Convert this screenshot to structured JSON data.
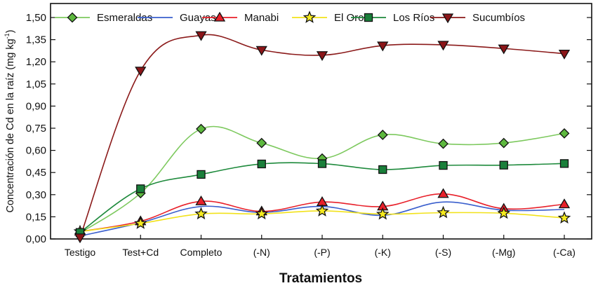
{
  "chart_data": {
    "type": "line",
    "title": "",
    "xlabel": "Tratamientos",
    "ylabel": "Concentración de Cd en la raíz (mg kg",
    "ylabel_superscript": "-1",
    "ylabel_suffix": ")",
    "ylim": [
      0,
      1.5
    ],
    "yticks": [
      "0,00",
      "0,15",
      "0,30",
      "0,45",
      "0,60",
      "0,75",
      "0,90",
      "1,05",
      "1,20",
      "1,35",
      "1,50"
    ],
    "ytick_values": [
      0,
      0.15,
      0.3,
      0.45,
      0.6,
      0.75,
      0.9,
      1.05,
      1.2,
      1.35,
      1.5
    ],
    "categories": [
      "Testigo",
      "Test+Cd",
      "Completo",
      "(-N)",
      "(-P)",
      "(-K)",
      "(-S)",
      "(-Mg)",
      "(-Ca)"
    ],
    "grid": false,
    "legend_position": "top",
    "series": [
      {
        "name": "Esmeraldas",
        "color": "#7dc95e",
        "marker": "diamond",
        "marker_fill": "#5db83e",
        "values": [
          0.04,
          0.31,
          0.745,
          0.65,
          0.545,
          0.705,
          0.645,
          0.65,
          0.715
        ]
      },
      {
        "name": "Guayas",
        "color": "#3a5fcd",
        "marker": "none",
        "marker_fill": "#3a5fcd",
        "values": [
          0.02,
          0.11,
          0.22,
          0.18,
          0.22,
          0.16,
          0.25,
          0.195,
          0.2
        ]
      },
      {
        "name": "Manabi",
        "color": "#e8202a",
        "marker": "triangle-up",
        "marker_fill": "#e8202a",
        "values": [
          0.05,
          0.12,
          0.255,
          0.187,
          0.25,
          0.22,
          0.305,
          0.205,
          0.235
        ]
      },
      {
        "name": "El Oro",
        "color": "#f2e21a",
        "marker": "star",
        "marker_fill": "#f5ea1e",
        "values": [
          0.05,
          0.105,
          0.17,
          0.17,
          0.19,
          0.168,
          0.178,
          0.174,
          0.142
        ]
      },
      {
        "name": "Los Ríos",
        "color": "#1e8a3c",
        "marker": "square",
        "marker_fill": "#1a7f3a",
        "values": [
          0.044,
          0.34,
          0.437,
          0.508,
          0.51,
          0.47,
          0.498,
          0.5,
          0.511
        ]
      },
      {
        "name": "Sucumbíos",
        "color": "#8b1a1a",
        "marker": "triangle-down",
        "marker_fill": "#8b1518",
        "values": [
          0.01,
          1.14,
          1.38,
          1.28,
          1.245,
          1.31,
          1.315,
          1.29,
          1.255
        ]
      }
    ]
  }
}
